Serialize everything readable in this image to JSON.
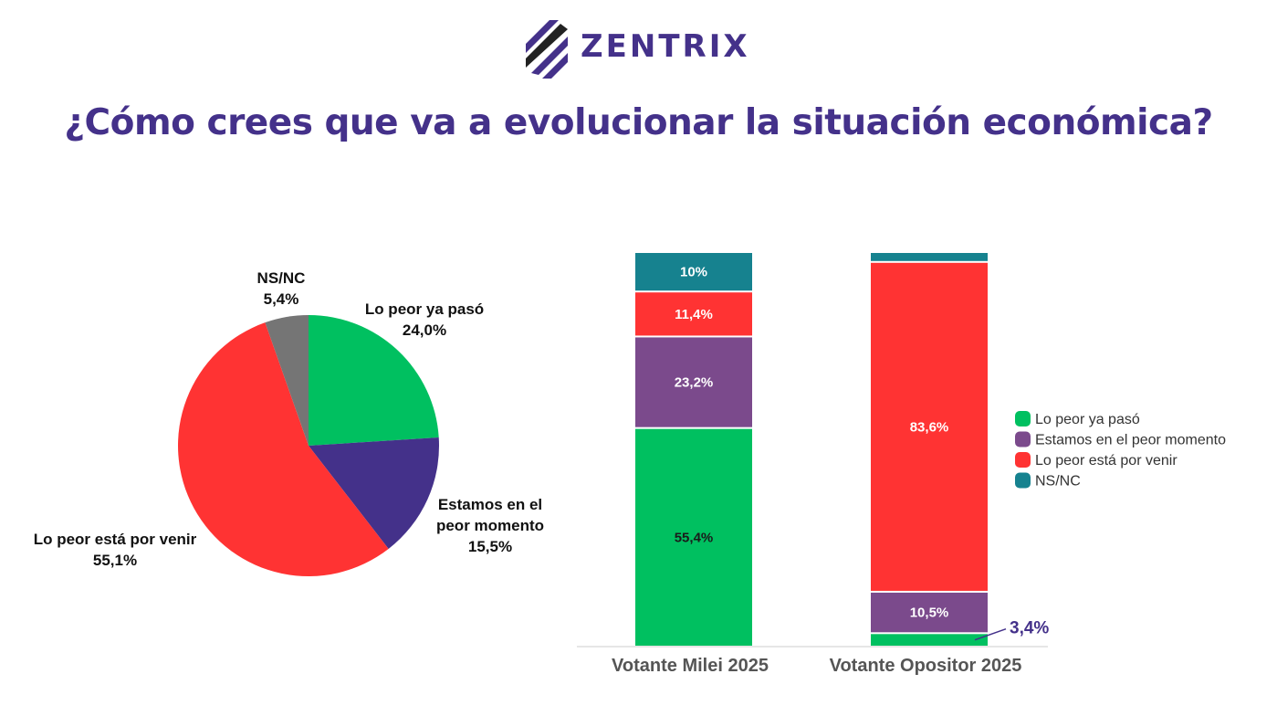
{
  "brand": {
    "name": "ZENTRIX"
  },
  "title": "¿Cómo crees que va a evolucionar la situación económica?",
  "colors": {
    "green": "#00c060",
    "purple": "#44318a",
    "violet": "#7b4a8c",
    "red": "#ff3333",
    "teal": "#16828f",
    "gray": "#757575"
  },
  "chart_data": [
    {
      "type": "pie",
      "slices": [
        {
          "label": "Lo peor ya pasó",
          "value": 24.0,
          "value_label": "24,0%",
          "color": "#00c060"
        },
        {
          "label": "Estamos en el peor momento",
          "value": 15.5,
          "value_label": "15,5%",
          "color": "#44318a"
        },
        {
          "label": "Lo peor está por venir",
          "value": 55.1,
          "value_label": "55,1%",
          "color": "#ff3333"
        },
        {
          "label": "NS/NC",
          "value": 5.4,
          "value_label": "5,4%",
          "color": "#757575"
        }
      ]
    },
    {
      "type": "bar",
      "stacked": true,
      "categories": [
        "Votante Milei 2025",
        "Votante Opositor 2025"
      ],
      "series": [
        {
          "name": "Lo peor ya pasó",
          "color": "#00c060",
          "values": [
            55.4,
            3.4
          ],
          "labels": [
            "55,4%",
            "3,4%"
          ]
        },
        {
          "name": "Estamos en el peor momento",
          "color": "#7b4a8c",
          "values": [
            23.2,
            10.5
          ],
          "labels": [
            "23,2%",
            "10,5%"
          ]
        },
        {
          "name": "Lo peor está por venir",
          "color": "#ff3333",
          "values": [
            11.4,
            83.6
          ],
          "labels": [
            "11,4%",
            "83,6%"
          ]
        },
        {
          "name": "NS/NC",
          "color": "#16828f",
          "values": [
            10,
            2.5
          ],
          "labels": [
            "10%",
            ""
          ]
        }
      ],
      "legend_position": "right"
    }
  ]
}
